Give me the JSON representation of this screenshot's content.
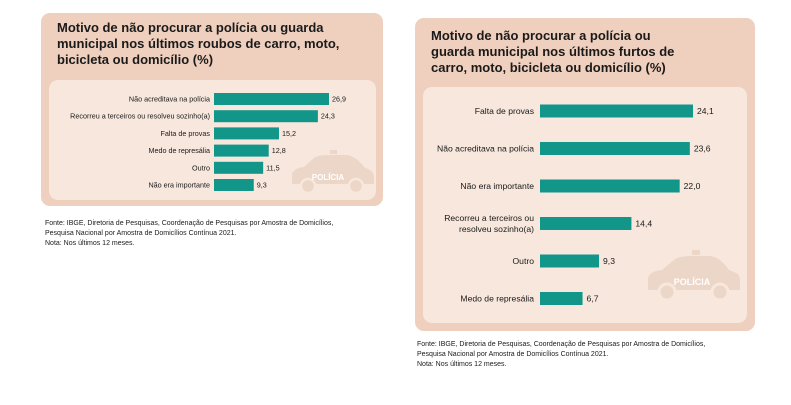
{
  "chart_data": [
    {
      "type": "bar",
      "orientation": "horizontal",
      "title": "Motivo de não procurar a polícia ou guarda municipal nos últimos roubos de carro, moto, bicicleta ou domicílio (%)",
      "title_lines": [
        "Motivo de não procurar a polícia ou guarda",
        "municipal nos últimos roubos de carro, moto,",
        "bicicleta ou domicílio (%)"
      ],
      "categories": [
        "Não acreditava na polícia",
        "Recorreu a terceiros ou resolveu sozinho(a)",
        "Falta de provas",
        "Medo de represália",
        "Outro",
        "Não era importante"
      ],
      "category_lines": [
        [
          "Não acreditava na polícia"
        ],
        [
          "Recorreu a terceiros ou resolveu sozinho(a)"
        ],
        [
          "Falta de provas"
        ],
        [
          "Medo de represália"
        ],
        [
          "Outro"
        ],
        [
          "Não era importante"
        ]
      ],
      "values": [
        26.9,
        24.3,
        15.2,
        12.8,
        11.5,
        9.3
      ],
      "value_labels": [
        "26,9",
        "24,3",
        "15,2",
        "12,8",
        "11,5",
        "9,3"
      ],
      "bar_color": "#12968a",
      "grid": false,
      "legend": "none",
      "decoration_text": "POLÍCIA",
      "source_lines": [
        "Fonte: IBGE, Diretoria de Pesquisas, Coordenação de Pesquisas por Amostra de Domicílios,",
        "Pesquisa Nacional por Amostra de Domicílios Contínua 2021."
      ],
      "note": "Nota: Nos últimos 12 meses."
    },
    {
      "type": "bar",
      "orientation": "horizontal",
      "title": "Motivo de não procurar a polícia ou guarda municipal nos últimos furtos de carro, moto, bicicleta ou domicílio (%)",
      "title_lines": [
        "Motivo de não procurar a polícia ou",
        "guarda municipal nos últimos furtos de",
        "carro, moto, bicicleta ou domicílio (%)"
      ],
      "categories": [
        "Falta de provas",
        "Não acreditava na polícia",
        "Não era importante",
        "Recorreu a terceiros ou resolveu sozinho(a)",
        "Outro",
        "Medo de represália"
      ],
      "category_lines": [
        [
          "Falta de provas"
        ],
        [
          "Não acreditava na polícia"
        ],
        [
          "Não era importante"
        ],
        [
          "Recorreu a terceiros ou",
          "resolveu sozinho(a)"
        ],
        [
          "Outro"
        ],
        [
          "Medo de represália"
        ]
      ],
      "values": [
        24.1,
        23.6,
        22.0,
        14.4,
        9.3,
        6.7
      ],
      "value_labels": [
        "24,1",
        "23,6",
        "22,0",
        "14,4",
        "9,3",
        "6,7"
      ],
      "bar_color": "#12968a",
      "grid": false,
      "legend": "none",
      "decoration_text": "POLÍCIA",
      "source_lines": [
        "Fonte: IBGE, Diretoria de Pesquisas, Coordenação de Pesquisas por Amostra de Domicílios,",
        "Pesquisa Nacional por Amostra de Domicílios Contínua 2021."
      ],
      "note": "Nota: Nos últimos 12 meses."
    }
  ]
}
